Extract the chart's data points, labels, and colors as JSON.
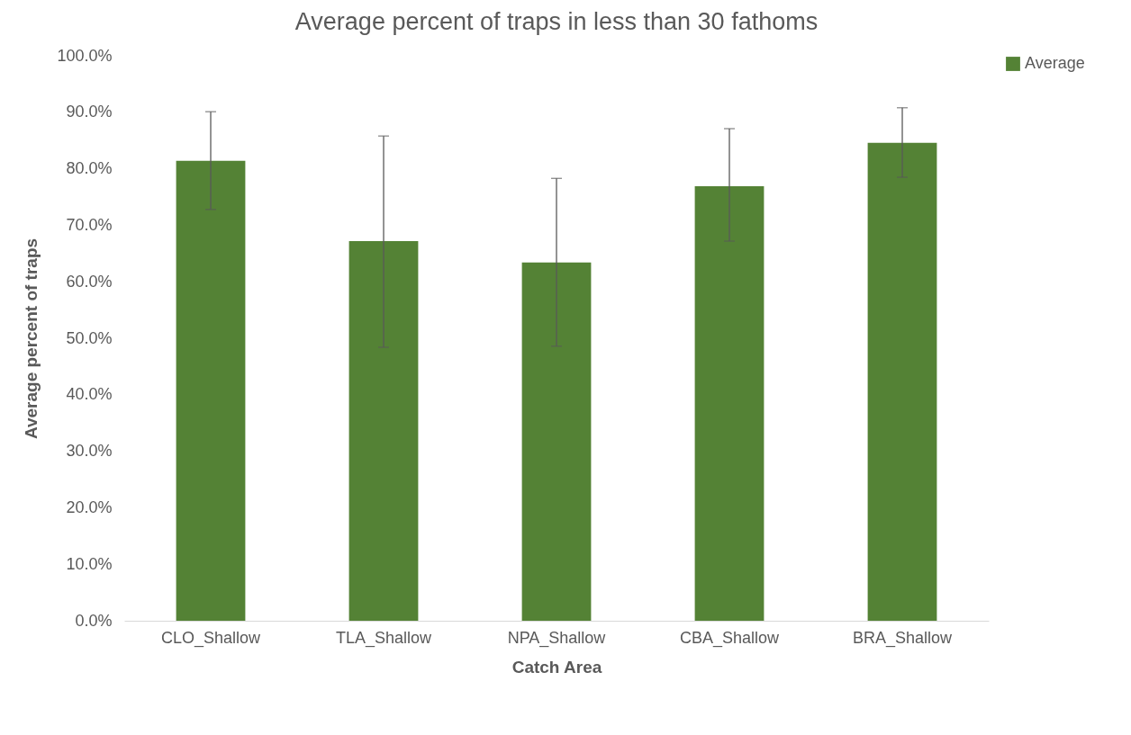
{
  "chart_data": {
    "type": "bar",
    "title": "Average percent of traps in less than 30 fathoms",
    "xlabel": "Catch Area",
    "ylabel": "Average percent of traps",
    "categories": [
      "CLO_Shallow",
      "TLA_Shallow",
      "NPA_Shallow",
      "CBA_Shallow",
      "BRA_Shallow"
    ],
    "series": [
      {
        "name": "Average",
        "color": "#548235",
        "values": [
          81.4,
          67.2,
          63.4,
          76.9,
          84.6
        ],
        "errors": [
          [
            72.8,
            90.1
          ],
          [
            48.4,
            85.8
          ],
          [
            48.6,
            78.3
          ],
          [
            67.2,
            87.1
          ],
          [
            78.5,
            90.8
          ]
        ]
      }
    ],
    "ylim": [
      0,
      100
    ],
    "yticks": [
      {
        "value": 0,
        "label": "0.0%"
      },
      {
        "value": 10,
        "label": "10.0%"
      },
      {
        "value": 20,
        "label": "20.0%"
      },
      {
        "value": 30,
        "label": "30.0%"
      },
      {
        "value": 40,
        "label": "40.0%"
      },
      {
        "value": 50,
        "label": "50.0%"
      },
      {
        "value": 60,
        "label": "60.0%"
      },
      {
        "value": 70,
        "label": "70.0%"
      },
      {
        "value": 80,
        "label": "80.0%"
      },
      {
        "value": 90,
        "label": "90.0%"
      },
      {
        "value": 100,
        "label": "100.0%"
      }
    ],
    "legend": "right"
  }
}
